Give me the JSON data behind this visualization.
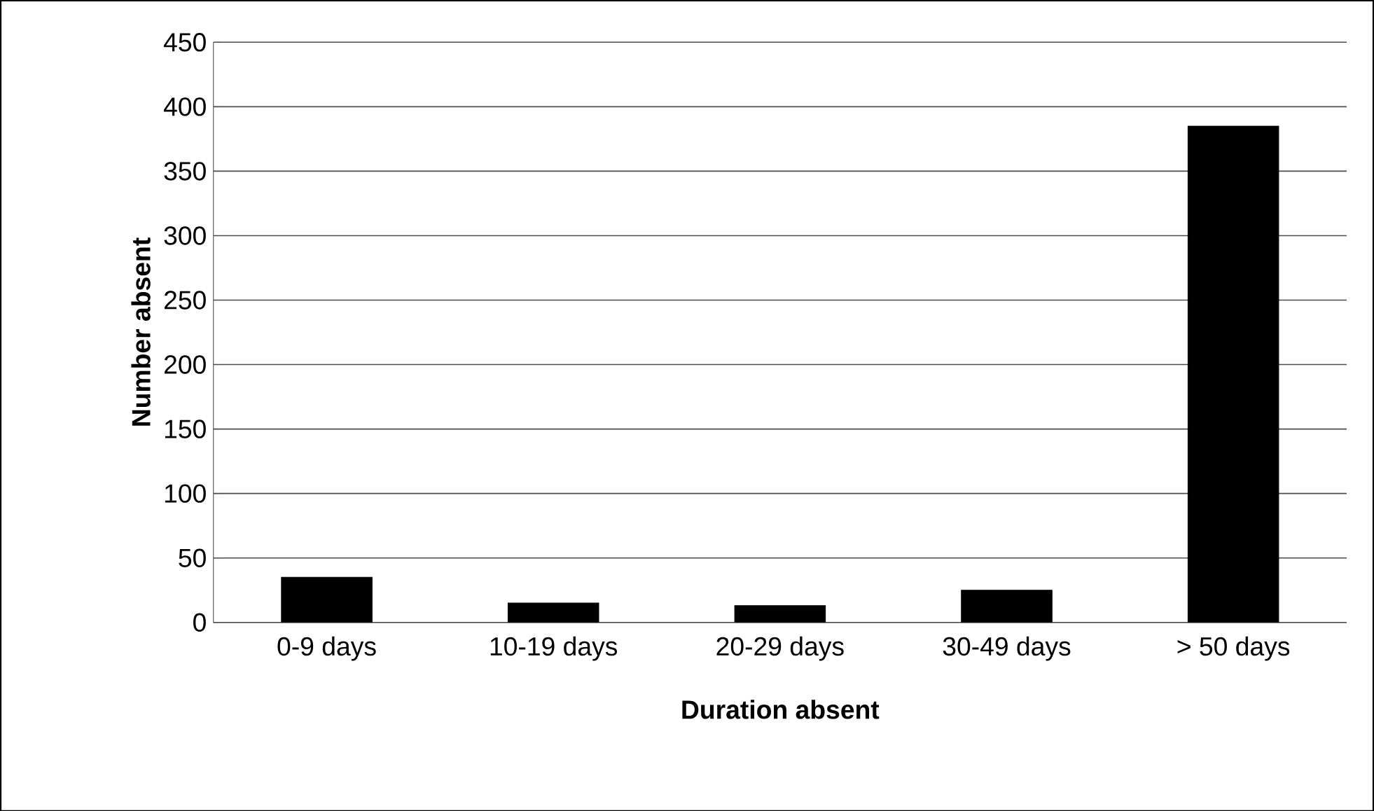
{
  "chart_data": {
    "type": "bar",
    "xlabel": "Duration absent",
    "ylabel": "Number absent",
    "categories": [
      "0-9 days",
      "10-19 days",
      "20-29 days",
      "30-49 days",
      "> 50 days"
    ],
    "values": [
      35,
      15,
      13,
      25,
      385
    ],
    "color": "#000000",
    "ylim": [
      0,
      450
    ],
    "yticks": [
      0,
      50,
      100,
      150,
      200,
      250,
      300,
      350,
      400,
      450
    ],
    "grid": "y"
  }
}
